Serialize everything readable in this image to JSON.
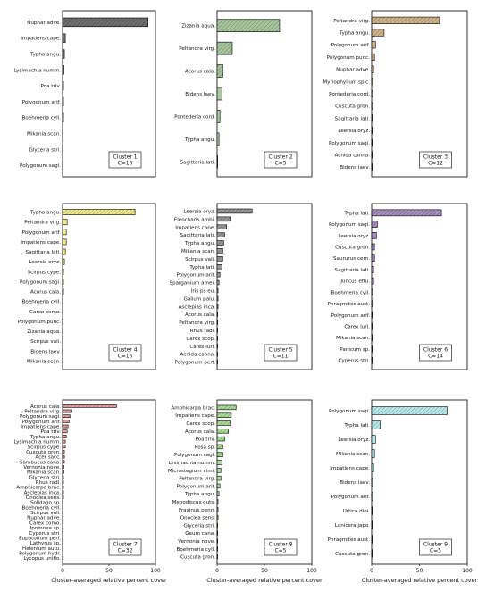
{
  "chart_data": [
    {
      "type": "bar",
      "orientation": "horizontal",
      "panel_label": "Cluster 1",
      "n_label": "C=16",
      "fill_color": "#6f6f6f",
      "xlim": [
        0,
        100
      ],
      "xticks": [],
      "categories": [
        "Nuphar adve.",
        "Impatiens cape.",
        "Typha angu.",
        "Lysimachia numm.",
        "Poa triv.",
        "Polygonum arif.",
        "Boehmeria cyll.",
        "Mikania scan.",
        "Glyceria stri.",
        "Polygonum sagi."
      ],
      "values": [
        92,
        3,
        2,
        1.5,
        1,
        1,
        1,
        0.5,
        0.5,
        0.3
      ],
      "xlabel": ""
    },
    {
      "type": "bar",
      "orientation": "horizontal",
      "panel_label": "Cluster 2",
      "n_label": "C=5",
      "fill_color": "#a8c8a0",
      "xlim": [
        0,
        100
      ],
      "xticks": [],
      "categories": [
        "Zizania aqua.",
        "Peltandra virg.",
        "Acorus cala.",
        "Bidens laev.",
        "Pontederia cord.",
        "Typha angu.",
        "Sagittaria lati."
      ],
      "values": [
        66,
        16,
        6,
        5,
        3,
        2,
        0.5
      ],
      "xlabel": ""
    },
    {
      "type": "bar",
      "orientation": "horizontal",
      "panel_label": "Cluster 3",
      "n_label": "C=12",
      "fill_color": "#d2b48c",
      "xlim": [
        0,
        100
      ],
      "xticks": [],
      "categories": [
        "Peltandra virg.",
        "Typha angu.",
        "Polygonum arif.",
        "Polygonum punc.",
        "Nuphar adve.",
        "Myriophyllum spic.",
        "Pontederia cord.",
        "Cuscuta gron.",
        "Sagittaria lati.",
        "Leersia oryz.",
        "Polygonum sagi.",
        "Acnida canna.",
        "Bidens laev."
      ],
      "values": [
        71,
        13,
        4,
        3,
        2,
        1,
        1,
        1,
        0.5,
        0.5,
        0.5,
        0.3,
        0.3
      ],
      "xlabel": ""
    },
    {
      "type": "bar",
      "orientation": "horizontal",
      "panel_label": "Cluster 4",
      "n_label": "C=16",
      "fill_color": "#f3ec8c",
      "xlim": [
        0,
        100
      ],
      "xticks": [],
      "categories": [
        "Typha angu.",
        "Peltandra virg.",
        "Polygonum arif.",
        "Impatiens cape.",
        "Sagittaria lati.",
        "Leersia oryz.",
        "Scirpus cype.",
        "Polygonum sagi.",
        "Acorus cala.",
        "Boehmeria cyll.",
        "Carex como.",
        "Polygonum punc.",
        "Zizania aqua.",
        "Scirpus vali.",
        "Bidens laev.",
        "Mikania scan."
      ],
      "values": [
        78,
        5,
        4,
        4,
        3,
        2,
        1,
        1,
        1,
        0.5,
        0.5,
        0.5,
        0.3,
        0.3,
        0.3,
        0.3
      ],
      "xlabel": ""
    },
    {
      "type": "bar",
      "orientation": "horizontal",
      "panel_label": "Cluster 5",
      "n_label": "C=11",
      "fill_color": "#9a9a9a",
      "xlim": [
        0,
        100
      ],
      "xticks": [],
      "categories": [
        "Leersia oryz.",
        "Eleocharis ambi.",
        "Impatiens cape.",
        "Sagittaria lati.",
        "Typha angu.",
        "Mikania scan.",
        "Scirpus vali.",
        "Typha lati.",
        "Polygonum arif.",
        "Sparganium amer.",
        "Iris ps eu.",
        "Galium palu.",
        "Asclepias inca.",
        "Acorus cala.",
        "Peltandra virg.",
        "Rhus radi.",
        "Carex scop.",
        "Carex lurl.",
        "Acnida canna.",
        "Polygonum perf."
      ],
      "values": [
        37,
        14,
        10,
        8,
        7,
        6,
        6,
        5,
        3,
        2,
        1,
        1,
        1,
        0.5,
        0.5,
        0.5,
        0.5,
        0.5,
        0.3,
        0.3
      ],
      "xlabel": ""
    },
    {
      "type": "bar",
      "orientation": "horizontal",
      "panel_label": "Cluster 6",
      "n_label": "C=14",
      "fill_color": "#a98fc0",
      "xlim": [
        0,
        100
      ],
      "xticks": [],
      "categories": [
        "Typha lati.",
        "Polygonum sagi.",
        "Leersia oryz.",
        "Cuscuta gron.",
        "Saururus cern.",
        "Sagittaria lati.",
        "Juncus effu.",
        "Boehmeria cyll.",
        "Phragmites aust.",
        "Polygonum arif.",
        "Carex lurl.",
        "Mikania scan.",
        "Panicum sp.",
        "Cyperus stri."
      ],
      "values": [
        73,
        6,
        5,
        3,
        3,
        2,
        2,
        1,
        1,
        0.5,
        0.5,
        0.5,
        0.3,
        0.3
      ],
      "xlabel": ""
    },
    {
      "type": "bar",
      "orientation": "horizontal",
      "panel_label": "Cluster 7",
      "n_label": "C=32",
      "fill_color": "#e8a0a0",
      "xlim": [
        0,
        100
      ],
      "xticks": [
        "0",
        "50",
        "100"
      ],
      "categories": [
        "Acorus cala.",
        "Peltandra virg.",
        "Polygonum sagi.",
        "Polygonum arif.",
        "Impatiens cape.",
        "Poa triv.",
        "Typha angu.",
        "Lysimachia numm.",
        "Scirpus cype.",
        "Cuscuta gron.",
        "Acer sacc.",
        "Sambucus cana.",
        "Vernonia nove.",
        "Mikania scan.",
        "Glyceria stri.",
        "Rhus radi.",
        "Amphicarpa brac.",
        "Asclepias inca.",
        "Onoclea sens.",
        "Solidago sp.",
        "Boehmeria cyll.",
        "Scirpus vali.",
        "Nuphar adve.",
        "Carex como.",
        "Ipomoea sp.",
        "Cyperus stri.",
        "Eupatorium perf.",
        "Lathyrus sp.",
        "Helenium autu.",
        "Polygonum hydr.",
        "Lycopus uniflo."
      ],
      "values": [
        58,
        10,
        8,
        7,
        6,
        5,
        4,
        3,
        3,
        2,
        2,
        2,
        1.5,
        1.5,
        1,
        1,
        1,
        1,
        1,
        0.5,
        0.5,
        0.5,
        0.5,
        0.5,
        0.5,
        0.3,
        0.3,
        0.3,
        0.3,
        0.3,
        0.3
      ],
      "xlabel": "Cluster-averaged relative percent cover"
    },
    {
      "type": "bar",
      "orientation": "horizontal",
      "panel_label": "Cluster 8",
      "n_label": "C=5",
      "fill_color": "#a8e098",
      "xlim": [
        0,
        100
      ],
      "xticks": [
        "0",
        "50",
        "100"
      ],
      "categories": [
        "Amphicarpa brac.",
        "Impatiens cape.",
        "Carex scop.",
        "Acorus cala.",
        "Poa triv.",
        "Rosa sp.",
        "Polygonum sagi.",
        "Lysimachia numm.",
        "Microstegium vimi.",
        "Peltandra virg.",
        "Polygonum arif.",
        "Typha angu.",
        "Menodiscus outs.",
        "Fraxinus penn.",
        "Onoclea sens.",
        "Glyceria stri.",
        "Geum cana.",
        "Vernonia nove.",
        "Boehmeria cyll.",
        "Cuscuta gron."
      ],
      "values": [
        20,
        15,
        14,
        12,
        8,
        6,
        6,
        5,
        4,
        4,
        3,
        2,
        1,
        1,
        1,
        0.5,
        0.5,
        0.5,
        0.5,
        0.5
      ],
      "xlabel": "Cluster-averaged relative percent cover"
    },
    {
      "type": "bar",
      "orientation": "horizontal",
      "panel_label": "Cluster 9",
      "n_label": "C=5",
      "fill_color": "#b8ecec",
      "xlim": [
        0,
        100
      ],
      "xticks": [
        "0",
        "50",
        "100"
      ],
      "categories": [
        "Polygonum sagi.",
        "Typha lati.",
        "Leersia oryz.",
        "Mikania scan.",
        "Impatiens cape.",
        "Bidens laev.",
        "Polygonum arif.",
        "Urtica dioi.",
        "Lonicera japo.",
        "Phragmites aust.",
        "Cuscuta gron."
      ],
      "values": [
        79,
        9,
        4,
        3,
        2,
        1,
        1,
        0.5,
        0.5,
        0.5,
        0.3
      ],
      "xlabel": "Cluster-averaged relative percent cover"
    }
  ]
}
